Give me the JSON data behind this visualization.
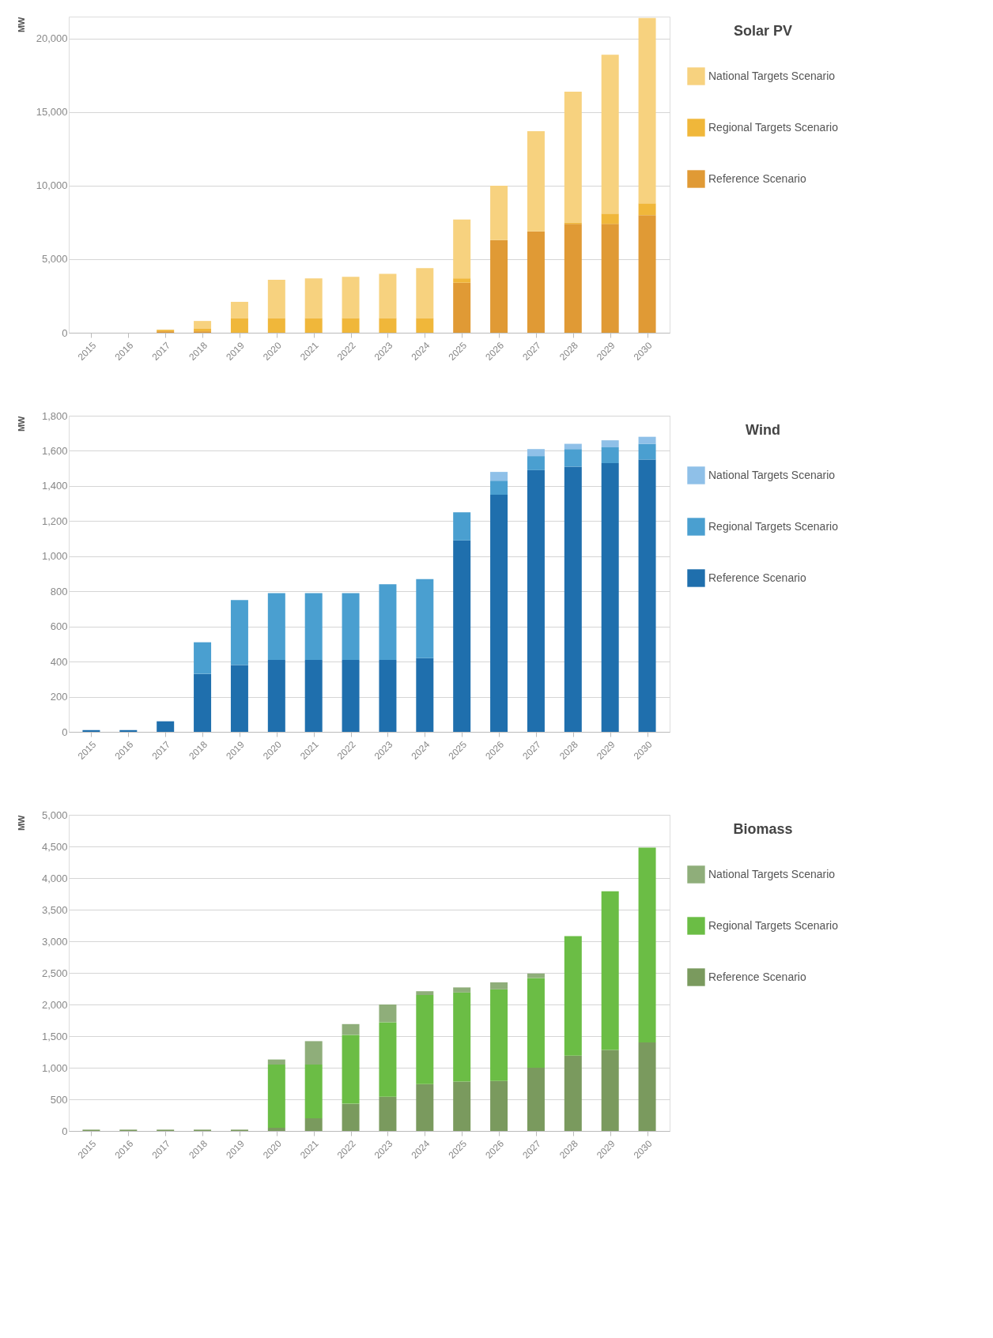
{
  "chart_data": [
    {
      "type": "bar",
      "stacked": true,
      "legend_title": "Solar PV",
      "ylabel": "MW",
      "categories": [
        "2015",
        "2016",
        "2017",
        "2018",
        "2019",
        "2020",
        "2021",
        "2022",
        "2023",
        "2024",
        "2025",
        "2026",
        "2027",
        "2028",
        "2029",
        "2030"
      ],
      "ylim": [
        0,
        21500
      ],
      "yticks": [
        0,
        {
          "value": 5000,
          "label": "5,000"
        },
        {
          "value": 10000,
          "label": "10,000"
        },
        {
          "value": 15000,
          "label": "15,000"
        },
        {
          "value": 20000,
          "label": "20,000"
        }
      ],
      "grid": "y",
      "legend": "right",
      "series": [
        {
          "name": "Reference Scenario",
          "color": "#e09a35",
          "values": [
            0,
            0,
            100,
            100,
            0,
            0,
            0,
            0,
            0,
            0,
            3400,
            6300,
            6900,
            7400,
            7400,
            8000
          ]
        },
        {
          "name": "Regional Targets Scenario",
          "color": "#f0b73a",
          "values": [
            0,
            0,
            100,
            200,
            1000,
            1000,
            1000,
            1000,
            1000,
            1000,
            300,
            0,
            0,
            100,
            700,
            800
          ]
        },
        {
          "name": "National Targets Scenario",
          "color": "#f7d27f",
          "values": [
            0,
            0,
            0,
            500,
            1100,
            2600,
            2700,
            2800,
            3000,
            3400,
            4000,
            3700,
            6800,
            8900,
            10800,
            12600
          ]
        }
      ]
    },
    {
      "type": "bar",
      "stacked": true,
      "legend_title": "Wind",
      "ylabel": "MW",
      "categories": [
        "2015",
        "2016",
        "2017",
        "2018",
        "2019",
        "2020",
        "2021",
        "2022",
        "2023",
        "2024",
        "2025",
        "2026",
        "2027",
        "2028",
        "2029",
        "2030"
      ],
      "ylim": [
        0,
        1800
      ],
      "yticks": [
        0,
        200,
        400,
        600,
        800,
        {
          "value": 1000,
          "label": "1,000"
        },
        {
          "value": 1200,
          "label": "1,200"
        },
        {
          "value": 1400,
          "label": "1,400"
        },
        {
          "value": 1600,
          "label": "1,600"
        },
        {
          "value": 1800,
          "label": "1,800"
        }
      ],
      "grid": "y",
      "legend": "right",
      "series": [
        {
          "name": "Reference Scenario",
          "color": "#1f6fad",
          "values": [
            10,
            10,
            60,
            330,
            380,
            410,
            410,
            410,
            410,
            420,
            1090,
            1350,
            1490,
            1510,
            1530,
            1550
          ]
        },
        {
          "name": "Regional Targets Scenario",
          "color": "#4a9fd0",
          "values": [
            0,
            0,
            0,
            180,
            370,
            380,
            380,
            380,
            430,
            450,
            160,
            80,
            80,
            100,
            90,
            90
          ]
        },
        {
          "name": "National Targets Scenario",
          "color": "#8fc0e8",
          "values": [
            0,
            0,
            0,
            0,
            0,
            0,
            0,
            0,
            0,
            0,
            0,
            50,
            40,
            30,
            40,
            40
          ]
        }
      ]
    },
    {
      "type": "bar",
      "stacked": true,
      "legend_title": "Biomass",
      "ylabel": "MW",
      "categories": [
        "2015",
        "2016",
        "2017",
        "2018",
        "2019",
        "2020",
        "2021",
        "2022",
        "2023",
        "2024",
        "2025",
        "2026",
        "2027",
        "2028",
        "2029",
        "2030"
      ],
      "ylim": [
        0,
        5000
      ],
      "yticks": [
        0,
        500,
        {
          "value": 1000,
          "label": "1,000"
        },
        {
          "value": 1500,
          "label": "1,500"
        },
        {
          "value": 2000,
          "label": "2,000"
        },
        {
          "value": 2500,
          "label": "2,500"
        },
        {
          "value": 3000,
          "label": "3,000"
        },
        {
          "value": 3500,
          "label": "3,500"
        },
        {
          "value": 4000,
          "label": "4,000"
        },
        {
          "value": 4500,
          "label": "4,500"
        },
        {
          "value": 5000,
          "label": "5,000"
        }
      ],
      "grid": "y",
      "legend": "right",
      "series": [
        {
          "name": "Reference Scenario",
          "color": "#7a9a5e",
          "values": [
            20,
            20,
            20,
            20,
            20,
            50,
            200,
            430,
            540,
            740,
            780,
            790,
            1000,
            1190,
            1280,
            1400
          ]
        },
        {
          "name": "Regional Targets Scenario",
          "color": "#6bbd45",
          "values": [
            0,
            0,
            0,
            0,
            0,
            1000,
            850,
            1090,
            1180,
            1410,
            1410,
            1450,
            1420,
            1890,
            2510,
            3080
          ]
        },
        {
          "name": "National Targets Scenario",
          "color": "#8fae7a",
          "values": [
            0,
            0,
            0,
            0,
            0,
            80,
            370,
            170,
            280,
            60,
            80,
            110,
            70,
            0,
            0,
            0
          ]
        }
      ]
    }
  ]
}
